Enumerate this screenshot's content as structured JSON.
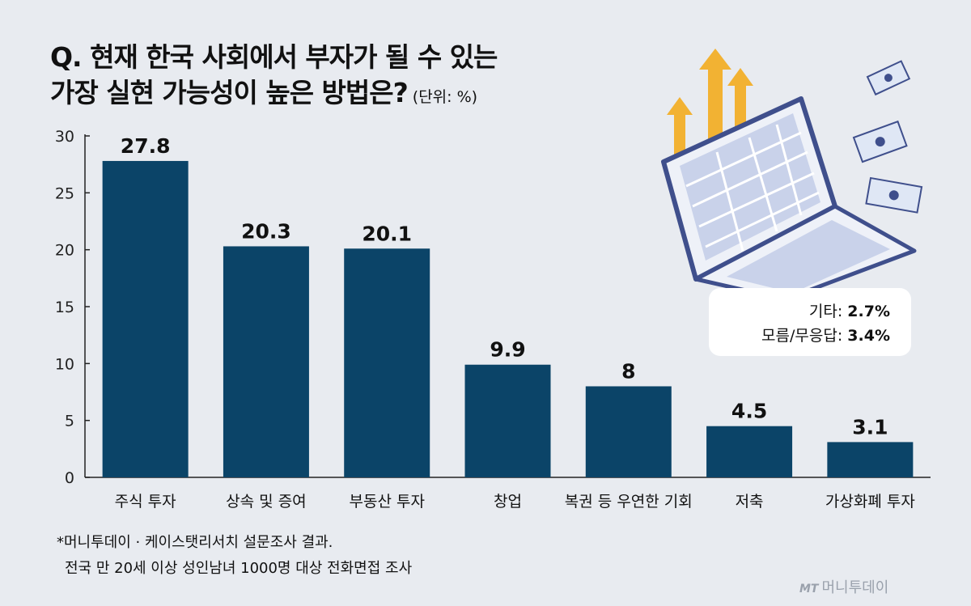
{
  "title_line1": "Q. 현재 한국 사회에서 부자가 될 수 있는",
  "title_line2": "가장 실현 가능성이 높은 방법은?",
  "unit": "(단위: %)",
  "other": {
    "label1": "기타:",
    "value1": "2.7%",
    "label2": "모름/무응답:",
    "value2": "3.4%"
  },
  "notes": {
    "line1": "*머니투데이 · 케이스탯리서치 설문조사 결과.",
    "line2": "전국 만 20세 이상 성인남녀 1000명 대상 전화면접 조사"
  },
  "logo": {
    "mark": "MT",
    "text": "머니투데이"
  },
  "colors": {
    "bar": "#0b4468",
    "background": "#e8ebf0",
    "arrow": "#f2b233",
    "laptop": "#3f4f8c"
  },
  "chart_data": {
    "type": "bar",
    "categories": [
      "주식 투자",
      "상속 및 증여",
      "부동산 투자",
      "창업",
      "복권 등 우연한 기회",
      "저축",
      "가상화폐 투자"
    ],
    "values": [
      27.8,
      20.3,
      20.1,
      9.9,
      8,
      4.5,
      3.1
    ],
    "value_labels": [
      "27.8",
      "20.3",
      "20.1",
      "9.9",
      "8",
      "4.5",
      "3.1"
    ],
    "ylim": [
      0,
      30
    ],
    "yticks": [
      "0",
      "5",
      "10",
      "15",
      "20",
      "25",
      "30"
    ],
    "ytick_values": [
      0,
      5,
      10,
      15,
      20,
      25,
      30
    ],
    "grid": false
  }
}
